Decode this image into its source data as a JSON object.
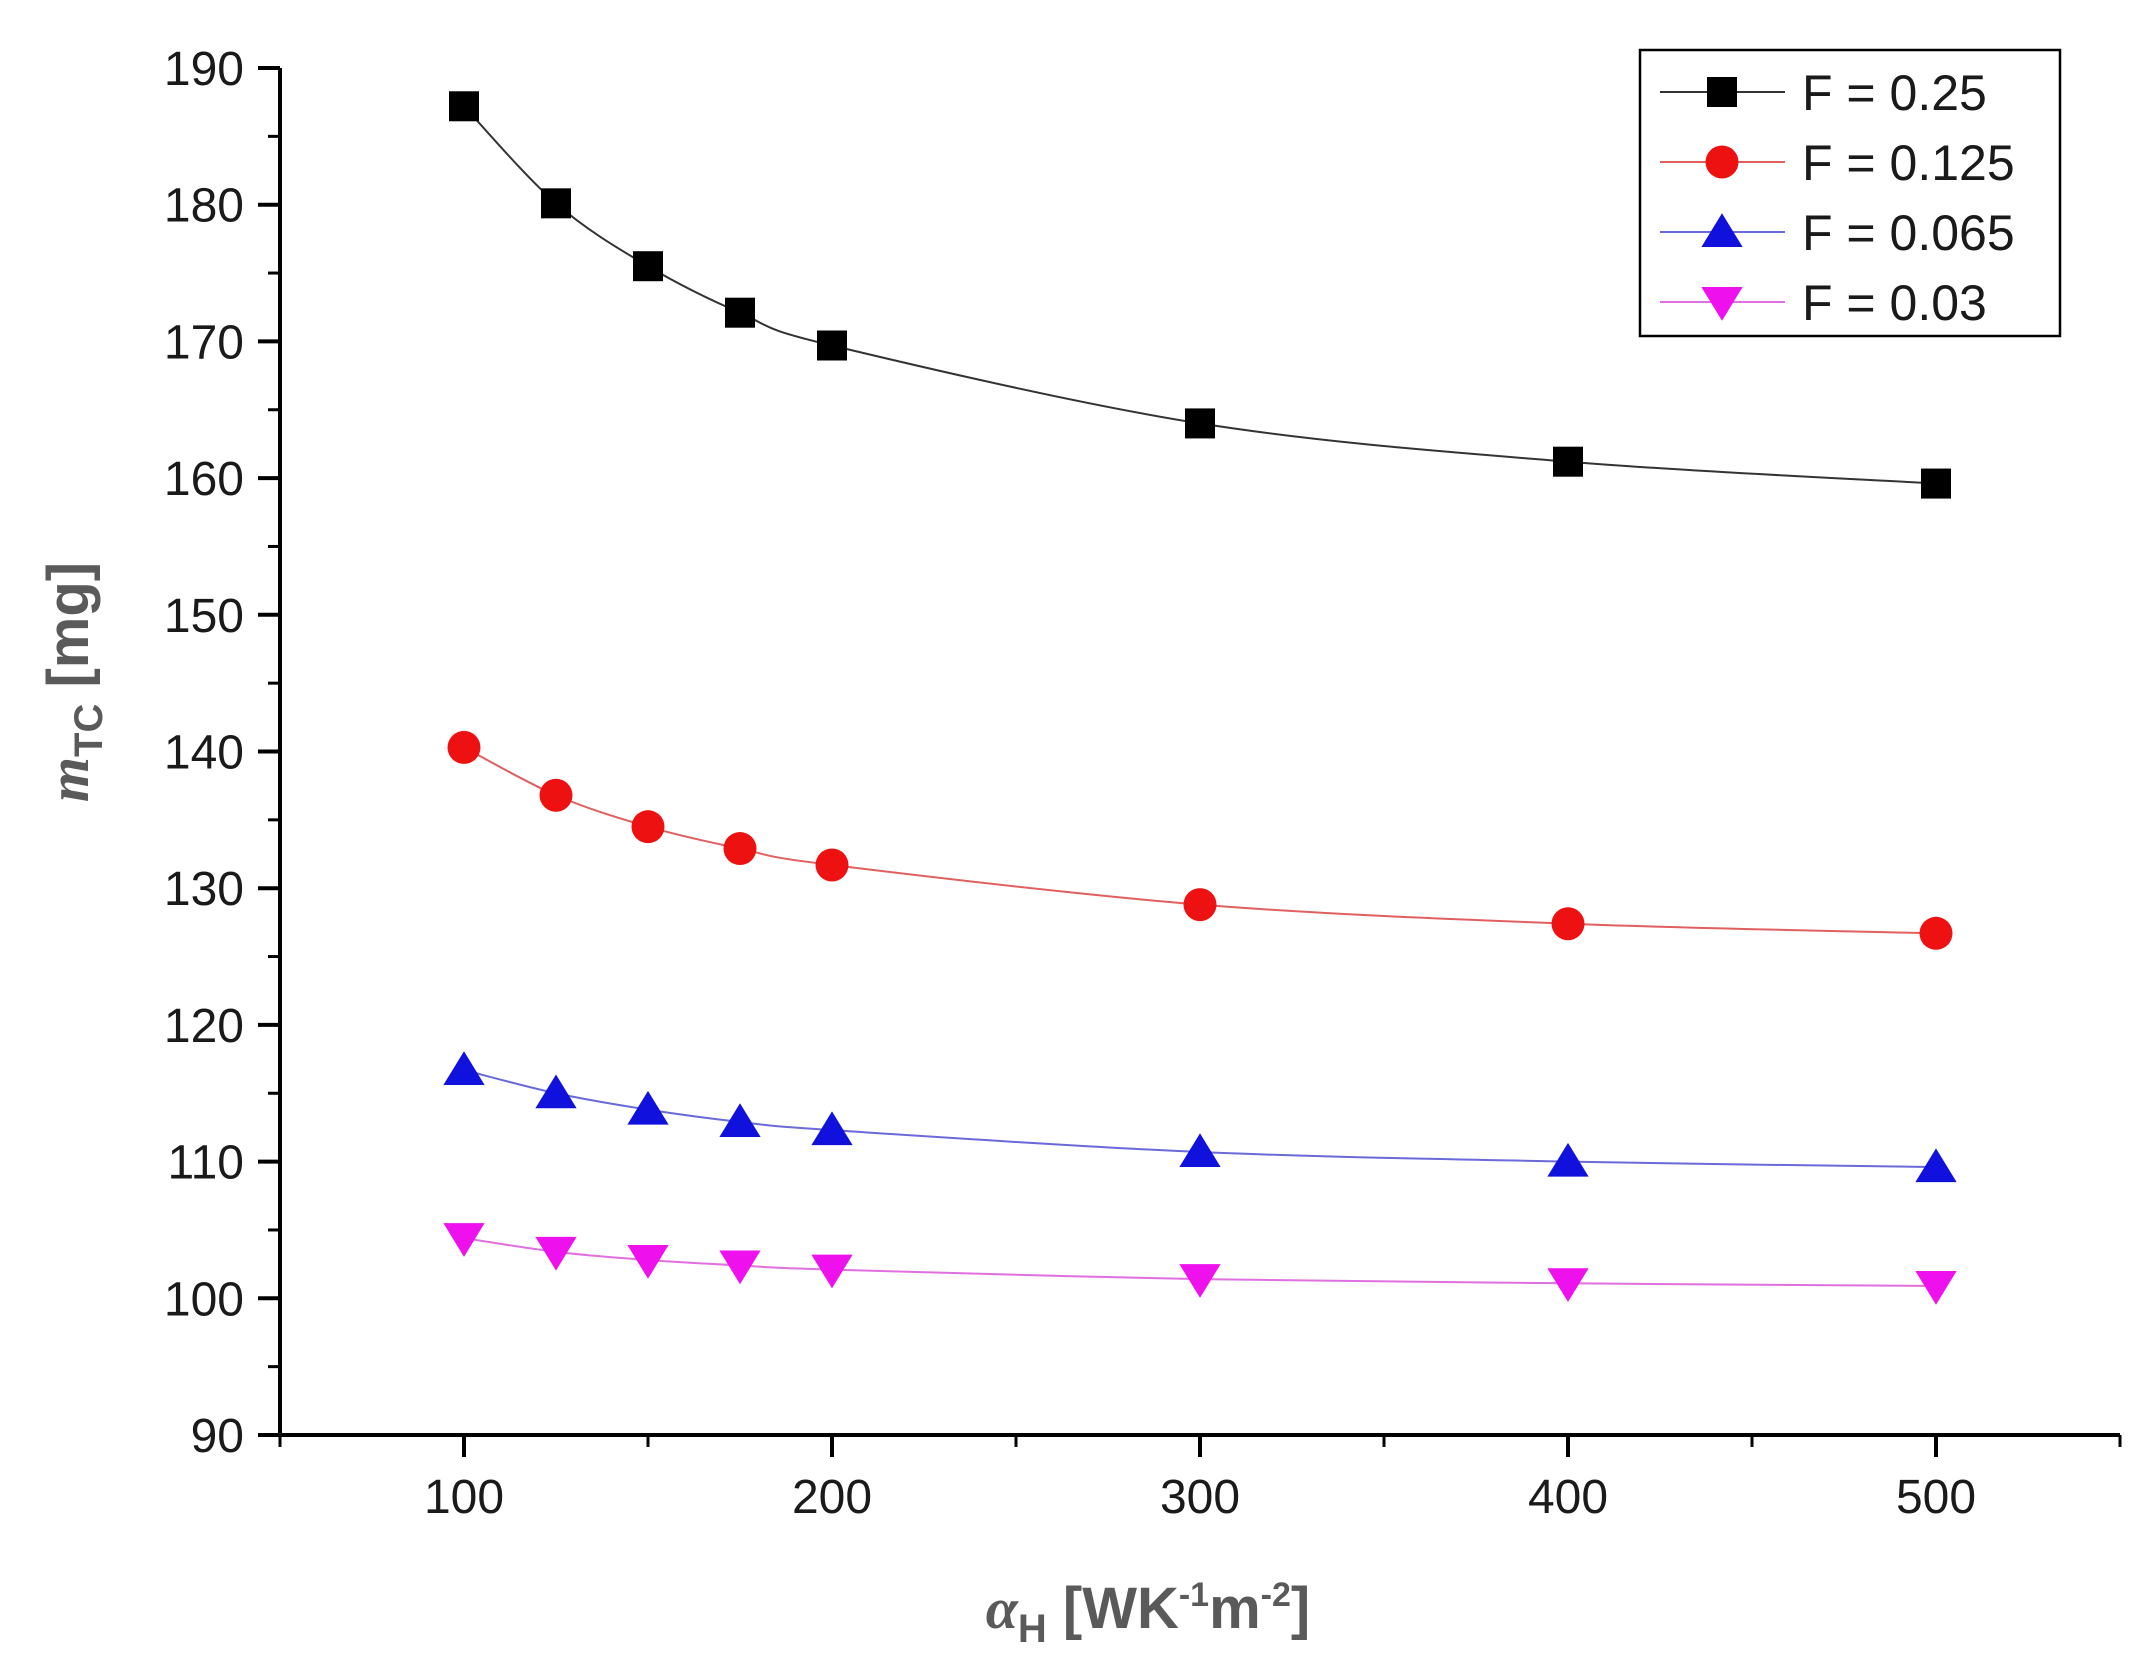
{
  "chart_data": {
    "type": "line",
    "xlabel": {
      "symbol": "α",
      "sub": "H",
      "unit_open": " [WK",
      "sup1": "-1",
      "unit_mid": "m",
      "sup2": "-2",
      "unit_close": "]"
    },
    "ylabel": {
      "symbol": "m",
      "sub": "TC",
      "unit": "  [mg]"
    },
    "xlim": [
      50,
      550
    ],
    "ylim": [
      90,
      190
    ],
    "xticks": [
      100,
      200,
      300,
      400,
      500
    ],
    "yticks": [
      90,
      100,
      110,
      120,
      130,
      140,
      150,
      160,
      170,
      180,
      190
    ],
    "grid": false,
    "legend_position": "top-right",
    "x": [
      100,
      125,
      150,
      175,
      200,
      300,
      400,
      500
    ],
    "series": [
      {
        "name": "F = 0.25",
        "marker": "square",
        "color": "#000000",
        "line_color": "#333333",
        "values": [
          187.2,
          180.1,
          175.5,
          172.1,
          169.7,
          164.0,
          161.2,
          159.6
        ]
      },
      {
        "name": "F = 0.125",
        "marker": "circle",
        "color": "#ee1111",
        "line_color": "#e06060",
        "values": [
          140.3,
          136.8,
          134.5,
          132.9,
          131.7,
          128.8,
          127.4,
          126.7
        ]
      },
      {
        "name": "F = 0.065",
        "marker": "triangle-up",
        "color": "#1111dd",
        "line_color": "#6a6ad8",
        "values": [
          116.7,
          115.0,
          113.8,
          112.9,
          112.3,
          110.7,
          110.0,
          109.6
        ]
      },
      {
        "name": "F = 0.03",
        "marker": "triangle-down",
        "color": "#ee11ee",
        "line_color": "#e070e0",
        "values": [
          104.4,
          103.4,
          102.8,
          102.4,
          102.1,
          101.4,
          101.1,
          100.9
        ]
      }
    ]
  }
}
